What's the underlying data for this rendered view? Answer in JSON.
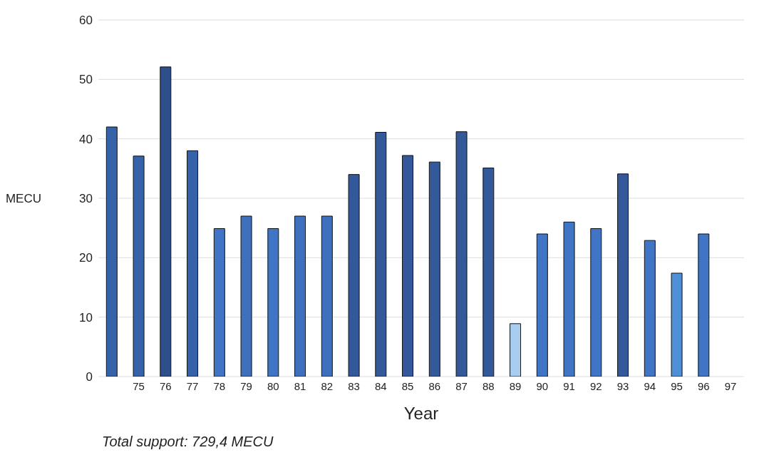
{
  "chart_data": {
    "type": "bar",
    "xlabel": "Year",
    "ylabel": "MECU",
    "categories": [
      null,
      "75",
      "76",
      "77",
      "78",
      "79",
      "80",
      "81",
      "82",
      "83",
      "84",
      "85",
      "86",
      "87",
      "88",
      "89",
      "90",
      "91",
      "92",
      "93",
      "94",
      "95",
      "96",
      "97"
    ],
    "values": [
      42,
      37.1,
      52.1,
      38,
      24.9,
      27,
      24.9,
      27,
      27,
      34,
      41.1,
      37.2,
      36.1,
      41.2,
      35.1,
      8.9,
      24,
      26,
      24.9,
      34.1,
      22.9,
      17.4,
      24,
      null
    ],
    "colors": [
      "#3562a8",
      "#3562a8",
      "#2d4f8c",
      "#3562a8",
      "#3f75c4",
      "#3e70bd",
      "#3f75c4",
      "#3e70bd",
      "#3e70bd",
      "#33599a",
      "#33599a",
      "#33599a",
      "#33599a",
      "#33599a",
      "#33599a",
      "#a9cdf0",
      "#3f75c4",
      "#3f75c4",
      "#3f75c4",
      "#33599a",
      "#3f75c4",
      "#4f8fd8",
      "#3f75c4",
      "#3f75c4"
    ],
    "ylim": [
      0,
      60
    ],
    "yticks": [
      0,
      10,
      20,
      30,
      40,
      50,
      60
    ],
    "grid": "y",
    "annotations": [
      "Total support: 729,4 MECU"
    ]
  }
}
